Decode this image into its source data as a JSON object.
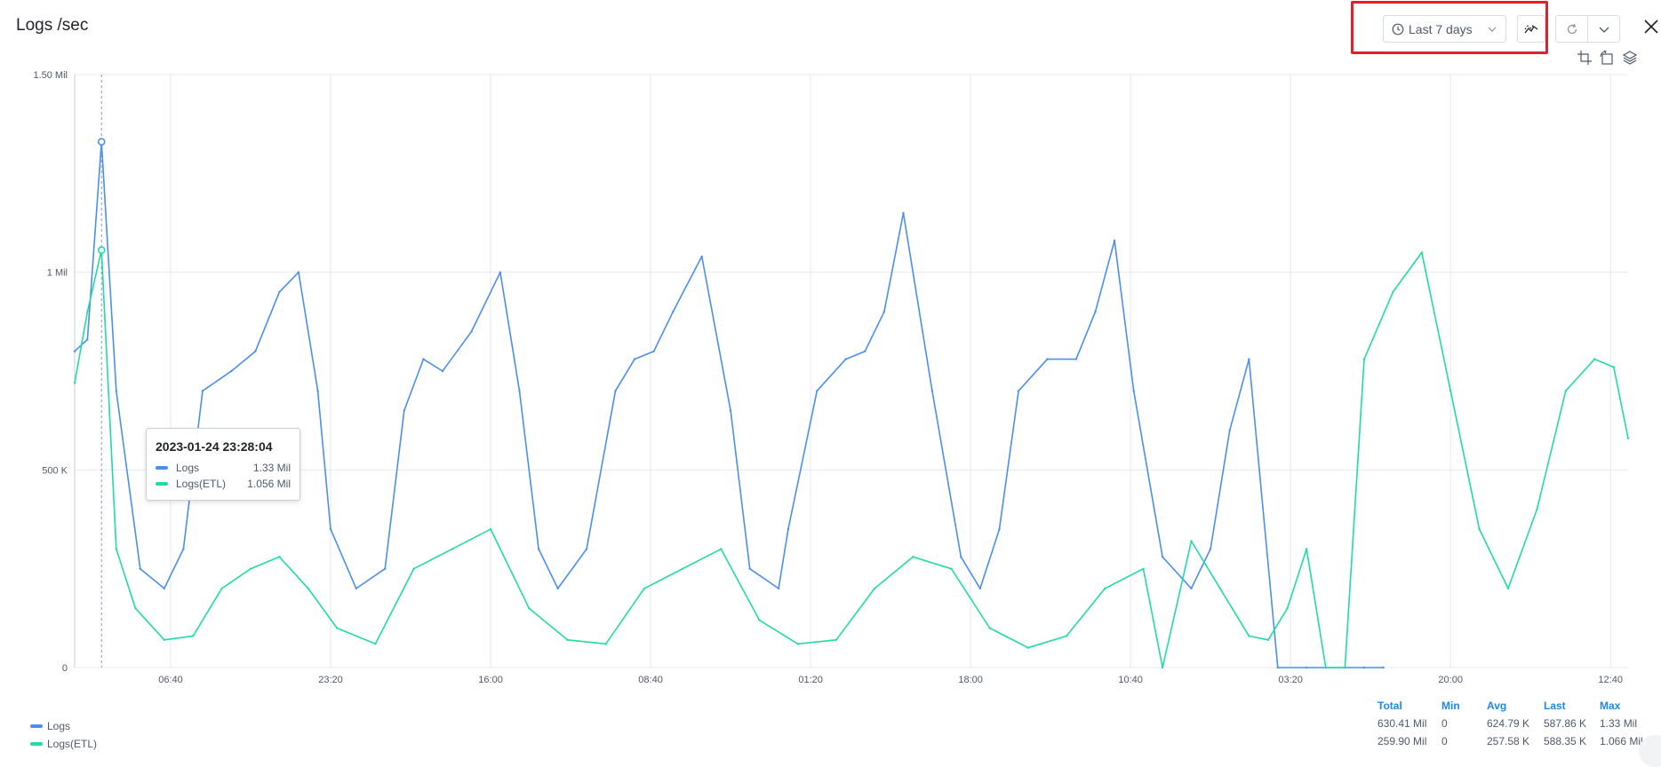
{
  "panel": {
    "title": "Logs /sec"
  },
  "toolbar": {
    "time_range": "Last 7 days",
    "compare_icon": "compare-trend-icon",
    "refresh_icon": "refresh-icon",
    "more_icon": "chevron-down-icon",
    "close_icon": "close-icon",
    "mini_icons": [
      "crop-icon",
      "reset-crop-icon",
      "layers-icon"
    ]
  },
  "colors": {
    "logs": "#4b8ef0",
    "logs_etl": "#20dba4",
    "highlight": "#e0202a",
    "stats_header": "#1e88e5",
    "grid": "#e6e8ee"
  },
  "chart_data": {
    "type": "line",
    "title": "Logs /sec",
    "xlabel": "",
    "ylabel": "",
    "y_ticks": [
      "0",
      "500 K",
      "1 Mil",
      "1.50 Mil"
    ],
    "ylim": [
      0,
      1500000
    ],
    "x_ticks": [
      "06:40",
      "23:20",
      "16:00",
      "08:40",
      "01:20",
      "18:00",
      "10:40",
      "03:20",
      "20:00",
      "12:40"
    ],
    "x_start": "2023-01-24 20:40",
    "x_end": "2023-01-31 14:30",
    "grid": true,
    "legend_position": "bottom-left",
    "series": [
      {
        "name": "Logs",
        "x": [
          "2023-01-24 20:40",
          "2023-01-24 22:00",
          "2023-01-24 23:28",
          "2023-01-25 01:00",
          "2023-01-25 03:30",
          "2023-01-25 06:00",
          "2023-01-25 08:00",
          "2023-01-25 10:00",
          "2023-01-25 13:00",
          "2023-01-25 15:30",
          "2023-01-25 18:00",
          "2023-01-25 20:00",
          "2023-01-25 22:00",
          "2023-01-25 23:20",
          "2023-01-26 02:00",
          "2023-01-26 05:00",
          "2023-01-26 07:00",
          "2023-01-26 09:00",
          "2023-01-26 11:00",
          "2023-01-26 14:00",
          "2023-01-26 17:00",
          "2023-01-26 19:00",
          "2023-01-26 21:00",
          "2023-01-26 23:00",
          "2023-01-27 02:00",
          "2023-01-27 05:00",
          "2023-01-27 07:00",
          "2023-01-27 09:00",
          "2023-01-27 11:00",
          "2023-01-27 14:00",
          "2023-01-27 17:00",
          "2023-01-27 19:00",
          "2023-01-27 22:00",
          "2023-01-27 23:00",
          "2023-01-28 02:00",
          "2023-01-28 05:00",
          "2023-01-28 07:00",
          "2023-01-28 09:00",
          "2023-01-28 11:00",
          "2023-01-28 14:00",
          "2023-01-28 17:00",
          "2023-01-28 19:00",
          "2023-01-28 21:00",
          "2023-01-28 23:00",
          "2023-01-29 02:00",
          "2023-01-29 05:00",
          "2023-01-29 07:00",
          "2023-01-29 09:00",
          "2023-01-29 11:00",
          "2023-01-29 14:00",
          "2023-01-29 17:00",
          "2023-01-29 19:00",
          "2023-01-29 21:00",
          "2023-01-29 23:00",
          "2023-01-30 02:00",
          "2023-01-30 05:00",
          "2023-01-30 07:00",
          "2023-01-30 09:00",
          "2023-01-30 11:00",
          "2023-01-30 13:00"
        ],
        "values": [
          800000,
          830000,
          1330000,
          700000,
          250000,
          200000,
          300000,
          700000,
          750000,
          800000,
          950000,
          1000000,
          700000,
          350000,
          200000,
          250000,
          650000,
          780000,
          750000,
          850000,
          1000000,
          700000,
          300000,
          200000,
          300000,
          700000,
          780000,
          800000,
          900000,
          1040000,
          650000,
          250000,
          200000,
          350000,
          700000,
          780000,
          800000,
          900000,
          1150000,
          700000,
          280000,
          200000,
          350000,
          700000,
          780000,
          780000,
          900000,
          1080000,
          700000,
          280000,
          200000,
          300000,
          600000,
          780000,
          0,
          0,
          0,
          0,
          0,
          0
        ]
      },
      {
        "name": "Logs(ETL)",
        "x": [
          "2023-01-24 20:40",
          "2023-01-24 22:00",
          "2023-01-24 23:28",
          "2023-01-25 01:00",
          "2023-01-25 03:00",
          "2023-01-25 06:00",
          "2023-01-25 09:00",
          "2023-01-25 12:00",
          "2023-01-25 15:00",
          "2023-01-25 18:00",
          "2023-01-25 21:00",
          "2023-01-26 00:00",
          "2023-01-26 04:00",
          "2023-01-26 08:00",
          "2023-01-26 12:00",
          "2023-01-26 16:00",
          "2023-01-26 20:00",
          "2023-01-27 00:00",
          "2023-01-27 04:00",
          "2023-01-27 08:00",
          "2023-01-27 12:00",
          "2023-01-27 16:00",
          "2023-01-27 20:00",
          "2023-01-28 00:00",
          "2023-01-28 04:00",
          "2023-01-28 08:00",
          "2023-01-28 12:00",
          "2023-01-28 16:00",
          "2023-01-28 20:00",
          "2023-01-29 00:00",
          "2023-01-29 04:00",
          "2023-01-29 08:00",
          "2023-01-29 12:00",
          "2023-01-29 14:00",
          "2023-01-29 17:00",
          "2023-01-29 20:00",
          "2023-01-29 23:00",
          "2023-01-30 01:00",
          "2023-01-30 03:00",
          "2023-01-30 05:00",
          "2023-01-30 07:00",
          "2023-01-30 09:00",
          "2023-01-30 11:00",
          "2023-01-30 14:00",
          "2023-01-30 17:00",
          "2023-01-30 20:00",
          "2023-01-30 23:00",
          "2023-01-31 02:00",
          "2023-01-31 05:00",
          "2023-01-31 08:00",
          "2023-01-31 11:00",
          "2023-01-31 13:00",
          "2023-01-31 14:30"
        ],
        "values": [
          720000,
          900000,
          1056000,
          300000,
          150000,
          70000,
          80000,
          200000,
          250000,
          280000,
          200000,
          100000,
          60000,
          250000,
          300000,
          350000,
          150000,
          70000,
          60000,
          200000,
          250000,
          300000,
          120000,
          60000,
          70000,
          200000,
          280000,
          250000,
          100000,
          50000,
          80000,
          200000,
          250000,
          0,
          320000,
          200000,
          80000,
          70000,
          150000,
          300000,
          0,
          0,
          780000,
          950000,
          1050000,
          700000,
          350000,
          200000,
          400000,
          700000,
          780000,
          760000,
          580000
        ]
      }
    ]
  },
  "tooltip": {
    "time": "2023-01-24 23:28:04",
    "rows": [
      {
        "name": "Logs",
        "value": "1.33 Mil"
      },
      {
        "name": "Logs(ETL)",
        "value": "1.056 Mil"
      }
    ]
  },
  "legend": [
    {
      "name": "Logs"
    },
    {
      "name": "Logs(ETL)"
    }
  ],
  "stats": {
    "headers": [
      "Total",
      "Min",
      "Avg",
      "Last",
      "Max"
    ],
    "rows": [
      [
        "630.41 Mil",
        "0",
        "624.79 K",
        "587.86 K",
        "1.33 Mil"
      ],
      [
        "259.90 Mil",
        "0",
        "257.58 K",
        "588.35 K",
        "1.066 Mil"
      ]
    ]
  }
}
